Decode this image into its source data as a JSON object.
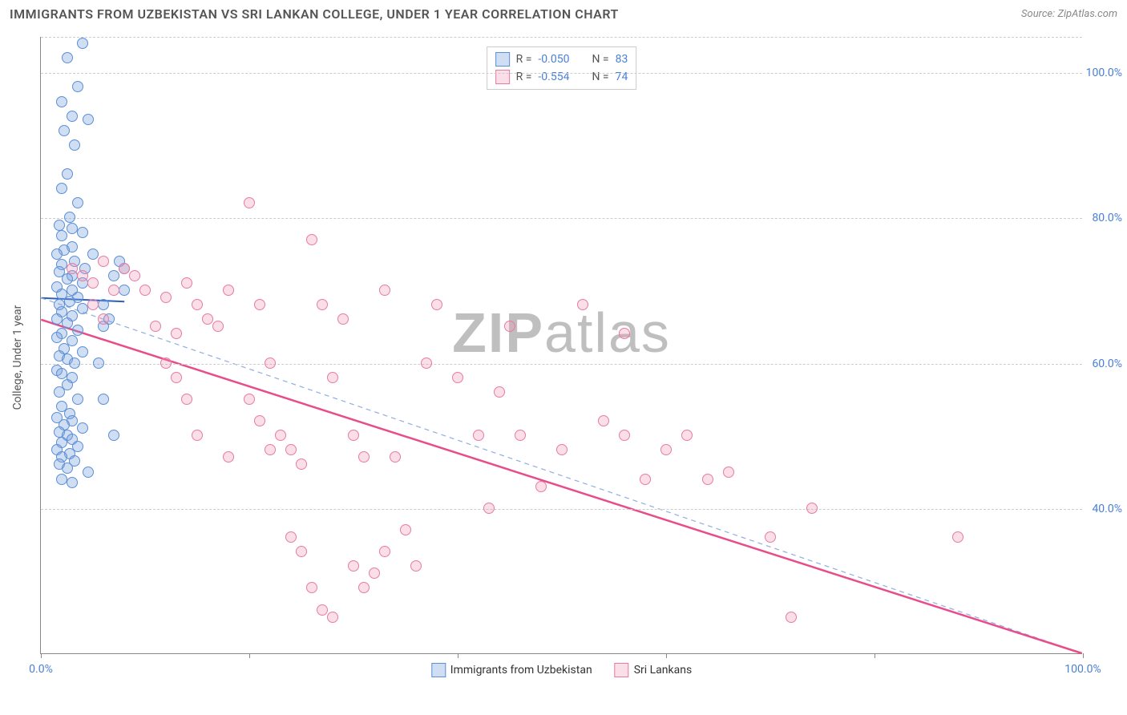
{
  "title": "IMMIGRANTS FROM UZBEKISTAN VS SRI LANKAN COLLEGE, UNDER 1 YEAR CORRELATION CHART",
  "source_prefix": "Source: ",
  "source_name": "ZipAtlas.com",
  "y_axis_label": "College, Under 1 year",
  "watermark_bold": "ZIP",
  "watermark_light": "atlas",
  "chart": {
    "type": "scatter",
    "xlim": [
      0,
      100
    ],
    "ylim": [
      20,
      105
    ],
    "x_ticks": [
      0,
      20,
      40,
      60,
      80,
      100
    ],
    "x_tick_labels": {
      "0": "0.0%",
      "100": "100.0%"
    },
    "y_gridlines": [
      40,
      60,
      80,
      100,
      105
    ],
    "y_tick_labels": {
      "40": "40.0%",
      "60": "60.0%",
      "80": "80.0%",
      "100": "100.0%"
    },
    "background_color": "#ffffff",
    "grid_color": "#cccccc",
    "axis_color": "#888888",
    "label_color": "#4a80d6",
    "point_radius": 7,
    "point_stroke_width": 1.5,
    "series": [
      {
        "name": "Immigrants from Uzbekistan",
        "fill": "rgba(120,160,220,0.35)",
        "stroke": "#5b8fd6",
        "R_label": "R = ",
        "R_value": "-0.050",
        "N_label": "N = ",
        "N_value": "83",
        "trend": {
          "x1": 0,
          "y1": 69,
          "x2": 8,
          "y2": 68.5,
          "stroke": "#2d5fbf",
          "width": 2,
          "dash": "none",
          "proj_x1": 0,
          "proj_y1": 69,
          "proj_x2": 100,
          "proj_y2": 20,
          "proj_dash": "6,5",
          "proj_width": 1.2,
          "proj_stroke": "#8faee0"
        },
        "points": [
          [
            4,
            104
          ],
          [
            2.5,
            102
          ],
          [
            3.5,
            98
          ],
          [
            2,
            96
          ],
          [
            3,
            94
          ],
          [
            4.5,
            93.5
          ],
          [
            2.2,
            92
          ],
          [
            3.2,
            90
          ],
          [
            2.5,
            86
          ],
          [
            2,
            84
          ],
          [
            3.5,
            82
          ],
          [
            2.8,
            80
          ],
          [
            1.8,
            79
          ],
          [
            3,
            78.5
          ],
          [
            4,
            78
          ],
          [
            2,
            77.5
          ],
          [
            3,
            76
          ],
          [
            2.2,
            75.5
          ],
          [
            1.5,
            75
          ],
          [
            3.2,
            74
          ],
          [
            2,
            73.5
          ],
          [
            4.2,
            73
          ],
          [
            1.8,
            72.5
          ],
          [
            3,
            72
          ],
          [
            2.5,
            71.5
          ],
          [
            4,
            71
          ],
          [
            1.5,
            70.5
          ],
          [
            3,
            70
          ],
          [
            2,
            69.5
          ],
          [
            3.5,
            69
          ],
          [
            2.8,
            68.5
          ],
          [
            1.8,
            68
          ],
          [
            4,
            67.5
          ],
          [
            2,
            67
          ],
          [
            3,
            66.5
          ],
          [
            1.5,
            66
          ],
          [
            2.5,
            65.5
          ],
          [
            6,
            65
          ],
          [
            3.5,
            64.5
          ],
          [
            2,
            64
          ],
          [
            1.5,
            63.5
          ],
          [
            3,
            63
          ],
          [
            2.2,
            62
          ],
          [
            4,
            61.5
          ],
          [
            1.8,
            61
          ],
          [
            2.5,
            60.5
          ],
          [
            3.2,
            60
          ],
          [
            1.5,
            59
          ],
          [
            2,
            58.5
          ],
          [
            3,
            58
          ],
          [
            2.5,
            57
          ],
          [
            1.8,
            56
          ],
          [
            3.5,
            55
          ],
          [
            2,
            54
          ],
          [
            2.8,
            53
          ],
          [
            1.5,
            52.5
          ],
          [
            3,
            52
          ],
          [
            2.2,
            51.5
          ],
          [
            4,
            51
          ],
          [
            1.8,
            50.5
          ],
          [
            2.5,
            50
          ],
          [
            3,
            49.5
          ],
          [
            2,
            49
          ],
          [
            3.5,
            48.5
          ],
          [
            1.5,
            48
          ],
          [
            2.8,
            47.5
          ],
          [
            2,
            47
          ],
          [
            3.2,
            46.5
          ],
          [
            1.8,
            46
          ],
          [
            2.5,
            45.5
          ],
          [
            4.5,
            45
          ],
          [
            2,
            44
          ],
          [
            3,
            43.5
          ],
          [
            6,
            68
          ],
          [
            7,
            72
          ],
          [
            5,
            75
          ],
          [
            8,
            70
          ],
          [
            6.5,
            66
          ],
          [
            7.5,
            74
          ],
          [
            5.5,
            60
          ],
          [
            6,
            55
          ],
          [
            7,
            50
          ],
          [
            8,
            73
          ]
        ]
      },
      {
        "name": "Sri Lankans",
        "fill": "rgba(240,150,180,0.3)",
        "stroke": "#e87aa4",
        "R_label": "R = ",
        "R_value": "-0.554",
        "N_label": "N = ",
        "N_value": "74",
        "trend": {
          "x1": 0,
          "y1": 66,
          "x2": 100,
          "y2": 20,
          "stroke": "#e84d8a",
          "width": 2.5,
          "dash": "none"
        },
        "points": [
          [
            3,
            73
          ],
          [
            4,
            72
          ],
          [
            5,
            71
          ],
          [
            6,
            74
          ],
          [
            7,
            70
          ],
          [
            8,
            73
          ],
          [
            5,
            68
          ],
          [
            6,
            66
          ],
          [
            9,
            72
          ],
          [
            10,
            70
          ],
          [
            11,
            65
          ],
          [
            12,
            69
          ],
          [
            13,
            64
          ],
          [
            14,
            71
          ],
          [
            15,
            68
          ],
          [
            12,
            60
          ],
          [
            13,
            58
          ],
          [
            14,
            55
          ],
          [
            16,
            66
          ],
          [
            17,
            65
          ],
          [
            18,
            70
          ],
          [
            20,
            82
          ],
          [
            21,
            68
          ],
          [
            22,
            60
          ],
          [
            23,
            50
          ],
          [
            24,
            48
          ],
          [
            25,
            46
          ],
          [
            26,
            77
          ],
          [
            20,
            55
          ],
          [
            21,
            52
          ],
          [
            22,
            48
          ],
          [
            27,
            68
          ],
          [
            28,
            58
          ],
          [
            29,
            66
          ],
          [
            30,
            50
          ],
          [
            31,
            47
          ],
          [
            24,
            36
          ],
          [
            25,
            34
          ],
          [
            26,
            29
          ],
          [
            27,
            26
          ],
          [
            28,
            25
          ],
          [
            30,
            32
          ],
          [
            31,
            29
          ],
          [
            32,
            31
          ],
          [
            33,
            34
          ],
          [
            38,
            68
          ],
          [
            40,
            58
          ],
          [
            42,
            50
          ],
          [
            43,
            40
          ],
          [
            34,
            47
          ],
          [
            35,
            37
          ],
          [
            36,
            32
          ],
          [
            44,
            56
          ],
          [
            46,
            50
          ],
          [
            48,
            43
          ],
          [
            50,
            48
          ],
          [
            52,
            68
          ],
          [
            54,
            52
          ],
          [
            56,
            50
          ],
          [
            58,
            44
          ],
          [
            60,
            48
          ],
          [
            62,
            50
          ],
          [
            64,
            44
          ],
          [
            66,
            45
          ],
          [
            70,
            36
          ],
          [
            56,
            64
          ],
          [
            74,
            40
          ],
          [
            88,
            36
          ],
          [
            72,
            25
          ],
          [
            45,
            65
          ],
          [
            33,
            70
          ],
          [
            37,
            60
          ],
          [
            15,
            50
          ],
          [
            18,
            47
          ]
        ]
      }
    ]
  }
}
